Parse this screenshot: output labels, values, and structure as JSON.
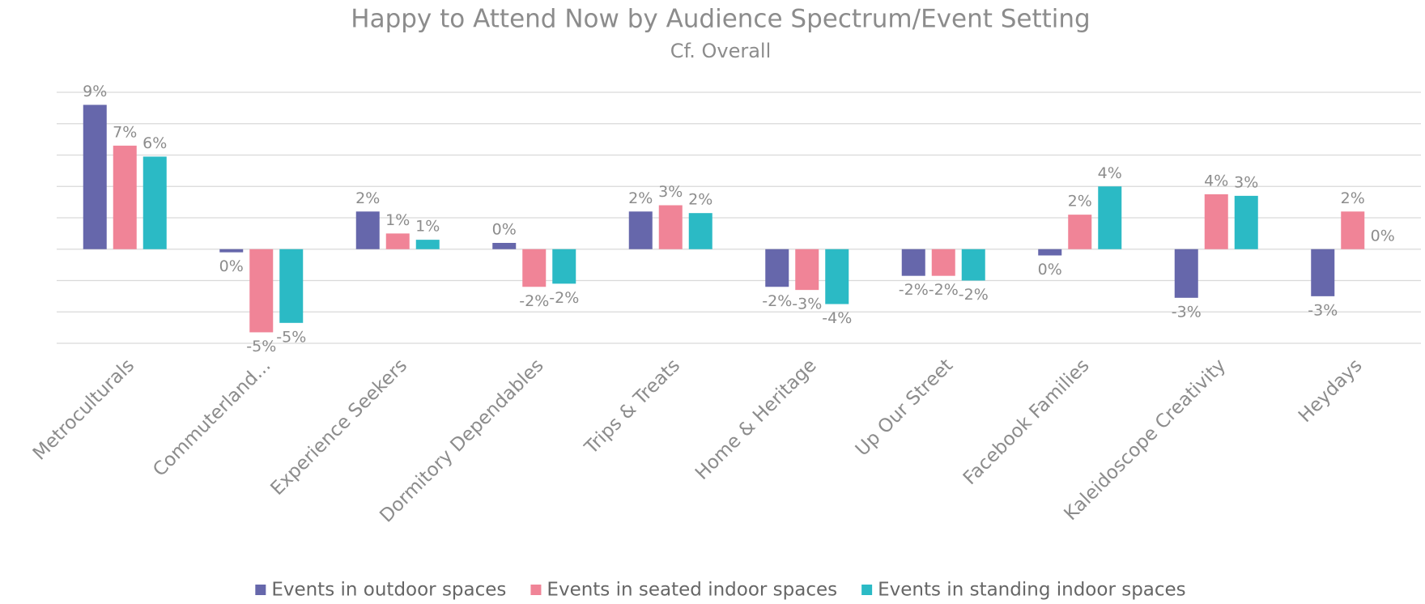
{
  "chart_data": {
    "type": "bar",
    "title": "Happy to Attend Now by Audience Spectrum/Event Setting",
    "subtitle": "Cf. Overall",
    "categories": [
      "Metroculturals",
      "Commuterland...",
      "Experience Seekers",
      "Dormitory Dependables",
      "Trips & Treats",
      "Home & Heritage",
      "Up Our Street",
      "Facebook Families",
      "Kaleidoscope Creativity",
      "Heydays"
    ],
    "series": [
      {
        "name": "Events in outdoor spaces",
        "color": "#6667ab",
        "values": [
          9.2,
          -0.2,
          2.4,
          0.4,
          2.4,
          -2.4,
          -1.7,
          -0.4,
          -3.1,
          -3.0
        ],
        "value_labels": [
          "9%",
          "0%",
          "2%",
          "0%",
          "2%",
          "-2%",
          "-2%",
          "0%",
          "-3%",
          "-3%"
        ]
      },
      {
        "name": "Events in seated indoor spaces",
        "color": "#f08497",
        "values": [
          6.6,
          -5.3,
          1.0,
          -2.4,
          2.8,
          -2.6,
          -1.7,
          2.2,
          3.5,
          2.4
        ],
        "value_labels": [
          "7%",
          "-5%",
          "1%",
          "-2%",
          "3%",
          "-3%",
          "-2%",
          "2%",
          "4%",
          "2%"
        ]
      },
      {
        "name": "Events in standing indoor spaces",
        "color": "#2bbac5",
        "values": [
          5.9,
          -4.7,
          0.6,
          -2.2,
          2.3,
          -3.5,
          -2.0,
          4.0,
          3.4,
          0.0
        ],
        "value_labels": [
          "6%",
          "-5%",
          "1%",
          "-2%",
          "2%",
          "-4%",
          "-2%",
          "4%",
          "3%",
          "0%"
        ]
      }
    ],
    "ylim": [
      -6,
      10
    ],
    "yticks": [
      -6,
      -4,
      -2,
      0,
      2,
      4,
      6,
      8,
      10
    ],
    "grid": true,
    "legend": "bottom"
  }
}
